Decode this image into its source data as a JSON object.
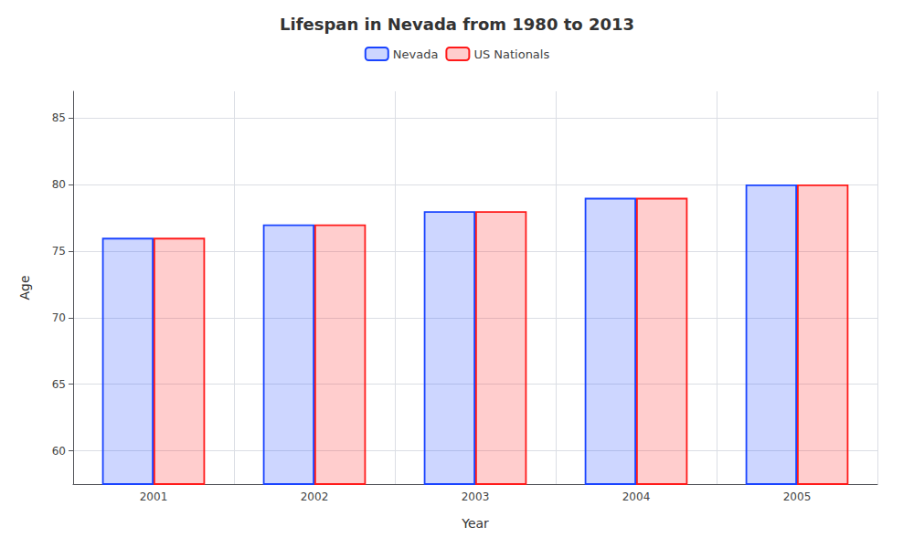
{
  "chart_data": {
    "type": "bar",
    "title": "Lifespan in Nevada from 1980 to 2013",
    "xlabel": "Year",
    "ylabel": "Age",
    "categories": [
      "2001",
      "2002",
      "2003",
      "2004",
      "2005"
    ],
    "series": [
      {
        "name": "Nevada",
        "color": "#1a44ff",
        "values": [
          76,
          77,
          78,
          79,
          80
        ]
      },
      {
        "name": "US Nationals",
        "color": "#ff1a1a",
        "values": [
          76,
          77,
          78,
          79,
          80
        ]
      }
    ],
    "ylim": [
      57.5,
      87
    ],
    "yticks": [
      60,
      65,
      70,
      75,
      80,
      85
    ],
    "grid": true,
    "legend": "top"
  }
}
